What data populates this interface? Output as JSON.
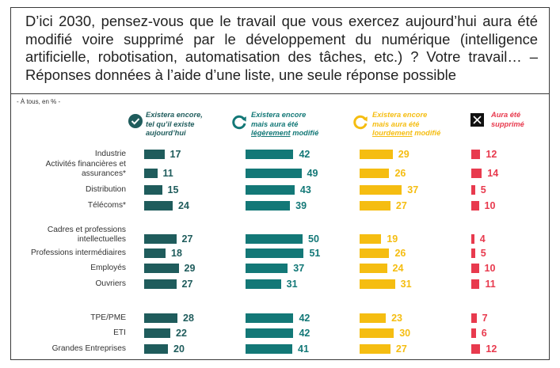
{
  "question": {
    "line1": "D’ici 2030, pensez-vous que le travail que vous exercez aujourd’hui aura été",
    "line2": "modifié voire supprimé par le développement du numérique (intelligence",
    "line3": "artificielle, robotisation, automatisation des tâches, etc.) ? Votre travail… –",
    "line4": "Réponses données à l’aide d’une liste, une seule réponse possible"
  },
  "scope_note": "- À tous, en % -",
  "colors": {
    "existera_encore": "#1f5c5c",
    "legerement_modifie": "#137877",
    "lourdement_modifie": "#f5bd11",
    "supprime": "#e83a4e"
  },
  "headers": {
    "existera_encore": {
      "icon": "check-circle-icon",
      "lines": [
        "Existera encore,",
        "tel qu’il existe",
        "aujourd’hui"
      ]
    },
    "legerement_modifie": {
      "icon": "arrow-cycle-icon",
      "lines": [
        "Existera encore",
        "mais aura été"
      ],
      "underlined": "légèrement",
      "suffix": " modifié"
    },
    "lourdement_modifie": {
      "icon": "arrow-cycle-icon",
      "lines": [
        "Existera encore",
        "mais aura été"
      ],
      "underlined": "lourdement",
      "suffix": " modifié"
    },
    "supprime": {
      "icon": "x-box-icon",
      "lines": [
        "Aura été",
        "supprimé"
      ]
    }
  },
  "chart_data": {
    "type": "bar",
    "categories": [
      "Industrie",
      "Activités financières et assurances*",
      "Distribution",
      "Télécoms*",
      "Cadres et professions intellectuelles",
      "Professions intermédiaires",
      "Employés",
      "Ouvriers",
      "TPE/PME",
      "ETI",
      "Grandes Entreprises"
    ],
    "series": [
      {
        "name": "Existera encore, tel qu’il existe aujourd’hui",
        "values": [
          17,
          11,
          15,
          24,
          27,
          18,
          29,
          27,
          28,
          22,
          20
        ]
      },
      {
        "name": "Existera encore mais aura été légèrement modifié",
        "values": [
          42,
          49,
          43,
          39,
          50,
          51,
          37,
          31,
          42,
          42,
          41
        ]
      },
      {
        "name": "Existera encore mais aura été lourdement modifié",
        "values": [
          29,
          26,
          37,
          27,
          19,
          26,
          24,
          31,
          23,
          30,
          27
        ]
      },
      {
        "name": "Aura été supprimé",
        "values": [
          12,
          14,
          5,
          10,
          4,
          5,
          10,
          11,
          7,
          6,
          12
        ]
      }
    ],
    "unit": "%"
  }
}
